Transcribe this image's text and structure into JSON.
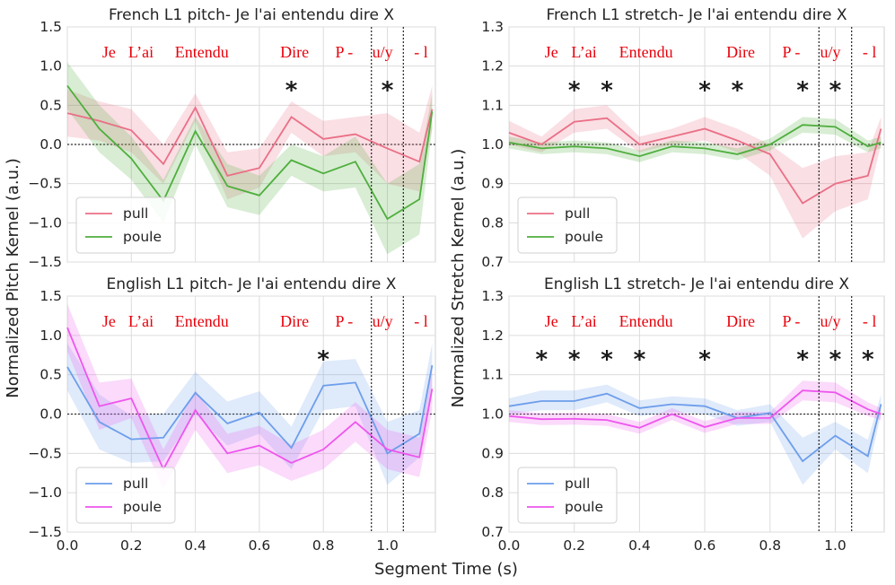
{
  "chart_data": [
    {
      "type": "line",
      "title": "French L1 pitch- Je l'ai entendu dire X",
      "ylabel": "Normalized Pitch Kernel (a.u.)",
      "ylim": [
        -1.5,
        1.5
      ],
      "yticks": [
        "1.5",
        "1.0",
        "0.5",
        "0.0",
        "−0.5",
        "−1.0",
        "−1.5"
      ],
      "ytick_values": [
        1.5,
        1.0,
        0.5,
        0.0,
        -0.5,
        -1.0,
        -1.5
      ],
      "xticks": [],
      "x": [
        0.0,
        0.1,
        0.2,
        0.3,
        0.4,
        0.5,
        0.6,
        0.7,
        0.8,
        0.9,
        1.0,
        1.1,
        1.14
      ],
      "series": [
        {
          "name": "pull",
          "color": "#ea6f86",
          "values": [
            0.4,
            0.3,
            0.18,
            -0.25,
            0.47,
            -0.4,
            -0.3,
            0.35,
            0.07,
            0.13,
            -0.05,
            -0.22,
            0.45
          ],
          "lower": [
            0.1,
            0.05,
            -0.1,
            -0.5,
            0.3,
            -0.7,
            -0.55,
            0.15,
            -0.15,
            -0.1,
            -0.5,
            -0.6,
            0.2
          ],
          "upper": [
            0.7,
            0.55,
            0.45,
            0.0,
            0.65,
            -0.1,
            -0.05,
            0.55,
            0.3,
            0.35,
            0.4,
            0.15,
            0.75
          ]
        },
        {
          "name": "poule",
          "color": "#4fae3d",
          "values": [
            0.75,
            0.2,
            -0.18,
            -0.72,
            0.17,
            -0.53,
            -0.65,
            -0.2,
            -0.37,
            -0.22,
            -0.95,
            -0.7,
            0.42
          ],
          "lower": [
            0.45,
            -0.1,
            -0.45,
            -1.0,
            0.0,
            -0.8,
            -0.9,
            -0.4,
            -0.6,
            -0.55,
            -1.4,
            -1.15,
            0.2
          ],
          "upper": [
            1.05,
            0.5,
            0.1,
            -0.45,
            0.35,
            -0.25,
            -0.4,
            0.0,
            -0.15,
            0.1,
            -0.5,
            -0.25,
            0.65
          ]
        }
      ],
      "words": [
        "Je",
        "L’ai",
        "Entendu",
        "Dire",
        "P -",
        "u/y",
        "- l"
      ],
      "stars_x": [
        0.7,
        1.0
      ],
      "vlines_x": [
        0.95,
        1.05
      ],
      "legend": [
        "pull",
        "poule"
      ]
    },
    {
      "type": "line",
      "title": "French L1 stretch- Je l'ai entendu dire X",
      "ylabel": "Normalized Stretch Kernel (a.u.)",
      "ylim": [
        0.7,
        1.3
      ],
      "yticks": [
        "1.3",
        "1.2",
        "1.1",
        "1.0",
        "0.9",
        "0.8",
        "0.7"
      ],
      "ytick_values": [
        1.3,
        1.2,
        1.1,
        1.0,
        0.9,
        0.8,
        0.7
      ],
      "xticks": [],
      "x": [
        0.0,
        0.1,
        0.2,
        0.3,
        0.4,
        0.5,
        0.6,
        0.7,
        0.8,
        0.9,
        1.0,
        1.1,
        1.14
      ],
      "series": [
        {
          "name": "pull",
          "color": "#ea6f86",
          "values": [
            1.03,
            1.0,
            1.058,
            1.067,
            1.0,
            1.02,
            1.04,
            1.01,
            0.975,
            0.85,
            0.9,
            0.92,
            1.04
          ],
          "lower": [
            1.0,
            0.98,
            1.03,
            1.04,
            0.98,
            1.0,
            1.01,
            0.98,
            0.92,
            0.76,
            0.83,
            0.86,
            1.0
          ],
          "upper": [
            1.06,
            1.02,
            1.09,
            1.1,
            1.02,
            1.04,
            1.07,
            1.04,
            1.0,
            0.94,
            0.97,
            0.98,
            1.07
          ]
        },
        {
          "name": "poule",
          "color": "#4fae3d",
          "values": [
            1.005,
            0.99,
            0.995,
            0.99,
            0.97,
            0.995,
            0.99,
            0.975,
            1.0,
            1.05,
            1.045,
            0.995,
            1.005
          ],
          "lower": [
            0.99,
            0.975,
            0.98,
            0.975,
            0.955,
            0.98,
            0.975,
            0.96,
            0.985,
            1.03,
            1.025,
            0.98,
            0.99
          ],
          "upper": [
            1.02,
            1.005,
            1.01,
            1.005,
            0.985,
            1.01,
            1.005,
            0.99,
            1.015,
            1.07,
            1.065,
            1.01,
            1.02
          ]
        }
      ],
      "words": [
        "Je",
        "L’ai",
        "Entendu",
        "Dire",
        "P -",
        "u/y",
        "- l"
      ],
      "stars_x": [
        0.2,
        0.3,
        0.6,
        0.7,
        0.9,
        1.0
      ],
      "vlines_x": [
        0.95,
        1.05
      ],
      "legend": [
        "pull",
        "poule"
      ]
    },
    {
      "type": "line",
      "title": "English L1 pitch- Je l'ai entendu dire X",
      "ylabel": "Normalized Pitch Kernel (a.u.)",
      "ylim": [
        -1.5,
        1.5
      ],
      "yticks": [
        "1.5",
        "1.0",
        "0.5",
        "0.0",
        "−0.5",
        "−1.0",
        "−1.5"
      ],
      "ytick_values": [
        1.5,
        1.0,
        0.5,
        0.0,
        -0.5,
        -1.0,
        -1.5
      ],
      "xticks": [
        "0.0",
        "0.2",
        "0.4",
        "0.6",
        "0.8",
        "1.0"
      ],
      "xtick_values": [
        0.0,
        0.2,
        0.4,
        0.6,
        0.8,
        1.0
      ],
      "x": [
        0.0,
        0.1,
        0.2,
        0.3,
        0.4,
        0.5,
        0.6,
        0.7,
        0.8,
        0.9,
        1.0,
        1.1,
        1.14
      ],
      "series": [
        {
          "name": "pull",
          "color": "#6d9eeb",
          "values": [
            0.6,
            -0.1,
            -0.32,
            -0.3,
            0.27,
            -0.12,
            0.02,
            -0.43,
            0.36,
            0.4,
            -0.5,
            -0.25,
            0.62
          ],
          "lower": [
            0.3,
            -0.45,
            -0.62,
            -0.6,
            0.0,
            -0.4,
            -0.25,
            -0.7,
            0.05,
            0.1,
            -0.9,
            -0.55,
            0.3
          ],
          "upper": [
            0.9,
            0.25,
            -0.02,
            0.0,
            0.54,
            0.16,
            0.29,
            -0.16,
            0.67,
            0.7,
            -0.1,
            0.05,
            0.9
          ]
        },
        {
          "name": "poule",
          "color": "#ee55ee",
          "values": [
            1.1,
            0.1,
            0.2,
            -0.7,
            0.05,
            -0.5,
            -0.4,
            -0.62,
            -0.45,
            -0.1,
            -0.45,
            -0.55,
            0.32
          ],
          "lower": [
            0.8,
            -0.2,
            -0.05,
            -0.95,
            -0.2,
            -0.75,
            -0.65,
            -0.85,
            -0.7,
            -0.35,
            -0.7,
            -0.8,
            0.05
          ],
          "upper": [
            1.4,
            0.4,
            0.45,
            -0.45,
            0.3,
            -0.25,
            -0.15,
            -0.39,
            -0.2,
            0.15,
            -0.2,
            -0.3,
            0.6
          ]
        }
      ],
      "words": [
        "Je",
        "L’ai",
        "Entendu",
        "Dire",
        "P -",
        "u/y",
        "- l"
      ],
      "stars_x": [
        0.8
      ],
      "vlines_x": [
        0.95,
        1.05
      ],
      "legend": [
        "pull",
        "poule"
      ]
    },
    {
      "type": "line",
      "title": "English L1 stretch- Je l'ai entendu dire X",
      "ylabel": "Normalized Stretch Kernel (a.u.)",
      "ylim": [
        0.7,
        1.3
      ],
      "yticks": [
        "1.3",
        "1.2",
        "1.1",
        "1.0",
        "0.9",
        "0.8",
        "0.7"
      ],
      "ytick_values": [
        1.3,
        1.2,
        1.1,
        1.0,
        0.9,
        0.8,
        0.7
      ],
      "xticks": [
        "0.0",
        "0.2",
        "0.4",
        "0.6",
        "0.8",
        "1.0"
      ],
      "xtick_values": [
        0.0,
        0.2,
        0.4,
        0.6,
        0.8,
        1.0
      ],
      "x": [
        0.0,
        0.1,
        0.2,
        0.3,
        0.4,
        0.5,
        0.6,
        0.7,
        0.8,
        0.9,
        1.0,
        1.1,
        1.14
      ],
      "series": [
        {
          "name": "pull",
          "color": "#6d9eeb",
          "values": [
            1.02,
            1.033,
            1.033,
            1.052,
            1.015,
            1.025,
            1.02,
            0.99,
            1.003,
            0.88,
            0.945,
            0.893,
            1.025
          ],
          "lower": [
            1.0,
            1.01,
            1.01,
            1.03,
            0.995,
            1.005,
            1.0,
            0.97,
            0.98,
            0.82,
            0.91,
            0.85,
            1.0
          ],
          "upper": [
            1.04,
            1.06,
            1.06,
            1.075,
            1.035,
            1.045,
            1.04,
            1.01,
            1.025,
            0.94,
            0.98,
            0.935,
            1.05
          ]
        },
        {
          "name": "poule",
          "color": "#ee55ee",
          "values": [
            0.995,
            0.987,
            0.988,
            0.985,
            0.965,
            1.0,
            0.967,
            0.99,
            0.99,
            1.06,
            1.055,
            1.012,
            1.0
          ],
          "lower": [
            0.98,
            0.972,
            0.973,
            0.97,
            0.95,
            0.985,
            0.952,
            0.975,
            0.975,
            1.035,
            1.03,
            0.995,
            0.985
          ],
          "upper": [
            1.01,
            1.002,
            1.003,
            1.0,
            0.98,
            1.015,
            0.982,
            1.005,
            1.005,
            1.085,
            1.08,
            1.03,
            1.015
          ]
        }
      ],
      "words": [
        "Je",
        "L’ai",
        "Entendu",
        "Dire",
        "P -",
        "u/y",
        "- l"
      ],
      "stars_x": [
        0.1,
        0.2,
        0.3,
        0.4,
        0.6,
        0.9,
        1.0,
        1.1
      ],
      "vlines_x": [
        0.95,
        1.05
      ],
      "legend": [
        "pull",
        "poule"
      ]
    }
  ],
  "figure": {
    "xlabel": "Segment Time (s)",
    "pitch_ylabel": "Normalized Pitch Kernel (a.u.)",
    "stretch_ylabel": "Normalized Stretch Kernel (a.u.)",
    "xlim": [
      0.0,
      1.15
    ]
  }
}
